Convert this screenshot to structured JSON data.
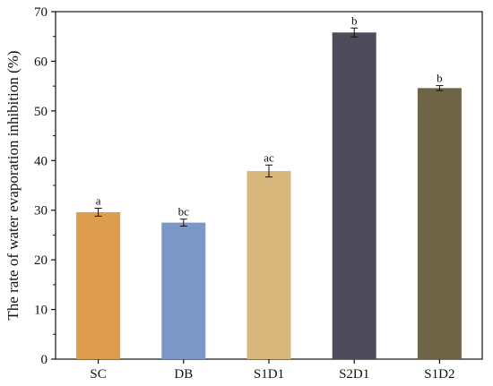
{
  "chart_data": {
    "type": "bar",
    "title": "",
    "xlabel": "",
    "ylabel": "The rate of water evaporation inhibition (%)",
    "ylim": [
      0,
      70
    ],
    "yticks": [
      0,
      10,
      20,
      30,
      40,
      50,
      60,
      70
    ],
    "categories": [
      "SC",
      "DB",
      "S1D1",
      "S2D1",
      "S1D2"
    ],
    "values": [
      29.6,
      27.5,
      37.9,
      65.8,
      54.6
    ],
    "errors": [
      0.8,
      0.7,
      1.2,
      0.9,
      0.5
    ],
    "significance": [
      "a",
      "bc",
      "ac",
      "b",
      "b"
    ],
    "colors": [
      "#DE9C4E",
      "#7A97C6",
      "#D8B77C",
      "#4D4B59",
      "#6E6547"
    ],
    "grid": false,
    "legend": "none"
  }
}
